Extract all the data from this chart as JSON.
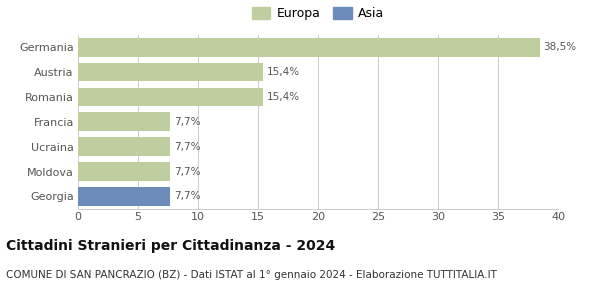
{
  "categories": [
    "Georgia",
    "Moldova",
    "Ucraina",
    "Francia",
    "Romania",
    "Austria",
    "Germania"
  ],
  "values": [
    7.7,
    7.7,
    7.7,
    7.7,
    15.4,
    15.4,
    38.5
  ],
  "labels": [
    "7,7%",
    "7,7%",
    "7,7%",
    "7,7%",
    "15,4%",
    "15,4%",
    "38,5%"
  ],
  "bar_colors": [
    "#6b8cba",
    "#bfce9e",
    "#bfce9e",
    "#bfce9e",
    "#bfce9e",
    "#bfce9e",
    "#bfce9e"
  ],
  "legend_labels": [
    "Europa",
    "Asia"
  ],
  "legend_colors": [
    "#bfce9e",
    "#6b8cba"
  ],
  "xlim": [
    0,
    40
  ],
  "xticks": [
    0,
    5,
    10,
    15,
    20,
    25,
    30,
    35,
    40
  ],
  "title": "Cittadini Stranieri per Cittadinanza - 2024",
  "subtitle": "COMUNE DI SAN PANCRAZIO (BZ) - Dati ISTAT al 1° gennaio 2024 - Elaborazione TUTTITALIA.IT",
  "title_fontsize": 10,
  "subtitle_fontsize": 7.5,
  "label_fontsize": 7.5,
  "tick_fontsize": 8,
  "ytick_fontsize": 8,
  "background_color": "#ffffff",
  "grid_color": "#cccccc",
  "bar_height": 0.75
}
